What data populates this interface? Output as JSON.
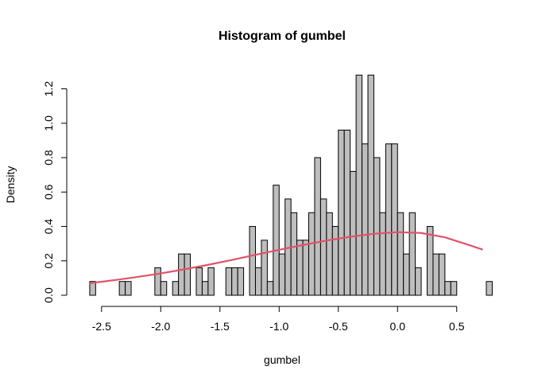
{
  "chart_data": {
    "type": "bar",
    "title": "Histogram of gumbel",
    "xlabel": "gumbel",
    "ylabel": "Density",
    "xlim": [
      -2.7,
      0.75
    ],
    "ylim": [
      0,
      1.3
    ],
    "x_ticks": [
      -2.5,
      -2.0,
      -1.5,
      -1.0,
      -0.5,
      0.0,
      0.5
    ],
    "x_tick_labels": [
      "-2.5",
      "-2.0",
      "-1.5",
      "-1.0",
      "-0.5",
      "0.0",
      "0.5"
    ],
    "y_ticks": [
      0,
      0.2,
      0.4,
      0.6,
      0.8,
      1.0,
      1.2
    ],
    "y_tick_labels": [
      "0.0",
      "0.2",
      "0.4",
      "0.6",
      "0.8",
      "1.0",
      "1.2"
    ],
    "bin_start": -2.6,
    "bin_width": 0.05,
    "densities": [
      0.08,
      0,
      0,
      0,
      0,
      0.08,
      0.08,
      0,
      0,
      0,
      0,
      0.16,
      0.08,
      0,
      0.08,
      0.24,
      0.24,
      0,
      0.16,
      0.08,
      0.16,
      0,
      0,
      0.16,
      0.16,
      0.16,
      0,
      0.4,
      0.16,
      0.32,
      0.08,
      0.64,
      0.24,
      0.56,
      0.48,
      0.32,
      0.32,
      0.48,
      0.8,
      0.56,
      0.48,
      0.4,
      0.96,
      0.96,
      0.72,
      1.28,
      0.88,
      1.28,
      0.8,
      0.48,
      0.88,
      0.88,
      0.48,
      0.24,
      0.48,
      0.16,
      0,
      0.4,
      0.24,
      0.24,
      0.08,
      0.08,
      0,
      0,
      0,
      0,
      0,
      0.08
    ],
    "bar_fill": "#bebebe",
    "bar_stroke": "#000000",
    "curve": {
      "color": "#df536b",
      "x": [
        -2.6,
        -2.4,
        -2.2,
        -2.0,
        -1.8,
        -1.6,
        -1.4,
        -1.2,
        -1.0,
        -0.8,
        -0.6,
        -0.4,
        -0.2,
        0.0,
        0.2,
        0.4,
        0.6,
        0.72
      ],
      "y": [
        0.07,
        0.087,
        0.106,
        0.127,
        0.151,
        0.177,
        0.205,
        0.235,
        0.264,
        0.292,
        0.318,
        0.34,
        0.357,
        0.367,
        0.362,
        0.337,
        0.293,
        0.265
      ]
    }
  }
}
